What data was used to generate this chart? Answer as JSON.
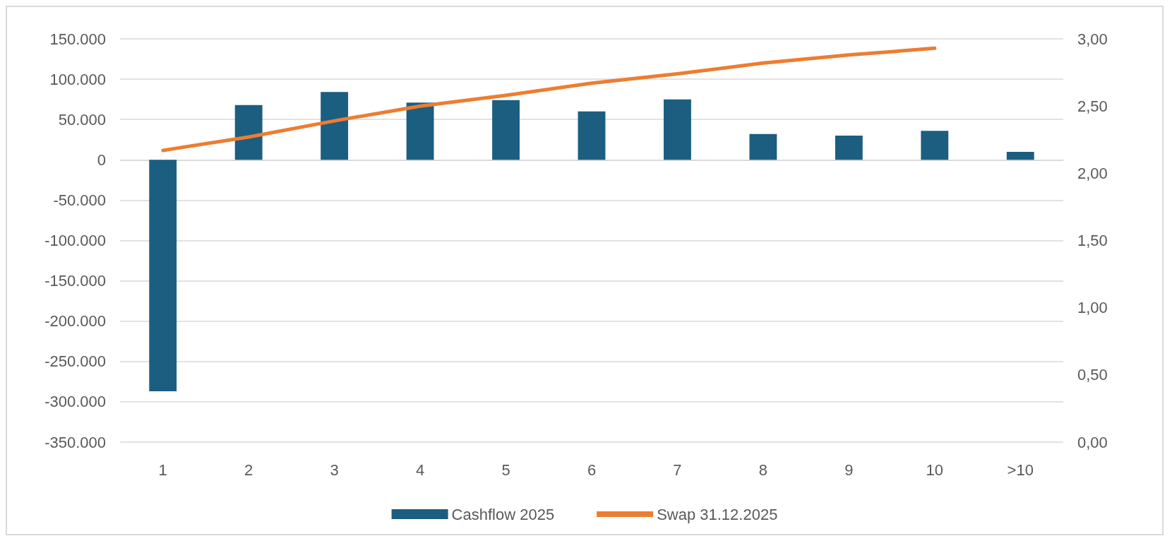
{
  "chart_data": {
    "type": "bar",
    "categories": [
      "1",
      "2",
      "3",
      "4",
      "5",
      "6",
      "7",
      "8",
      "9",
      "10",
      ">10"
    ],
    "series": [
      {
        "name": "Cashflow 2025",
        "color": "#1b5e80",
        "values": [
          -287000,
          68000,
          84000,
          71000,
          74000,
          60000,
          75000,
          32000,
          30000,
          36000,
          10000
        ]
      },
      {
        "name": "Swap 31.12.2025",
        "type": "line",
        "axis": "y2",
        "color": "#ed7d31",
        "values": [
          2.17,
          2.27,
          2.39,
          2.5,
          2.58,
          2.67,
          2.74,
          2.82,
          2.88,
          2.93,
          null
        ]
      }
    ],
    "ylim": [
      -350000,
      150000
    ],
    "yticks": [
      {
        "value": -350000,
        "label": "-350.000"
      },
      {
        "value": -300000,
        "label": "-300.000"
      },
      {
        "value": -250000,
        "label": "-250.000"
      },
      {
        "value": -200000,
        "label": "-200.000"
      },
      {
        "value": -150000,
        "label": "-150.000"
      },
      {
        "value": -100000,
        "label": "-100.000"
      },
      {
        "value": -50000,
        "label": "-50.000"
      },
      {
        "value": 0,
        "label": "0"
      },
      {
        "value": 50000,
        "label": "50.000"
      },
      {
        "value": 100000,
        "label": "100.000"
      },
      {
        "value": 150000,
        "label": "150.000"
      }
    ],
    "y2lim": [
      0,
      3
    ],
    "y2ticks": [
      {
        "value": 0,
        "label": "0,00"
      },
      {
        "value": 0.5,
        "label": "0,50"
      },
      {
        "value": 1,
        "label": "1,00"
      },
      {
        "value": 1.5,
        "label": "1,50"
      },
      {
        "value": 2,
        "label": "2,00"
      },
      {
        "value": 2.5,
        "label": "2,50"
      },
      {
        "value": 3,
        "label": "3,00"
      }
    ],
    "grid": "y",
    "legend": "bottom",
    "marker": "none",
    "line_style": "solid"
  }
}
